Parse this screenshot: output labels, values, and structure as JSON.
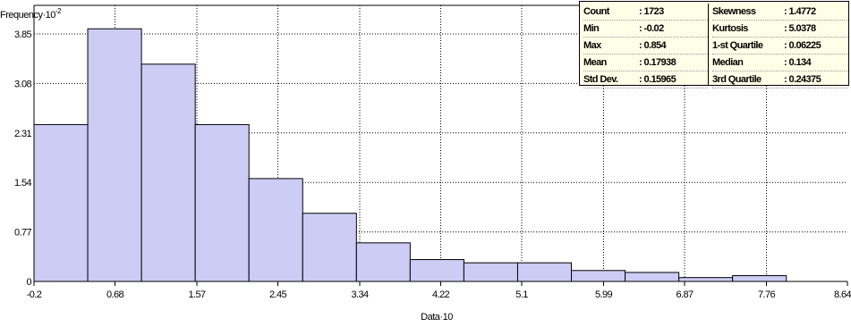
{
  "chart_data": {
    "type": "bar",
    "ylabel": "Frequency·10",
    "ylabel_exponent": "-2",
    "xlabel": "Data·10",
    "x_ticks": [
      "-0.2",
      "0.68",
      "1.57",
      "2.45",
      "3.34",
      "4.22",
      "5.1",
      "5.99",
      "6.87",
      "7.76",
      "8.64"
    ],
    "y_ticks": [
      "0",
      "0.77",
      "1.54",
      "2.31",
      "3.08",
      "3.85"
    ],
    "xlim": [
      -0.2,
      8.64
    ],
    "ylim": [
      0,
      3.85
    ],
    "bins": [
      {
        "start": -0.2,
        "end": 0.384,
        "value": 2.44
      },
      {
        "start": 0.384,
        "end": 0.968,
        "value": 3.93
      },
      {
        "start": 0.968,
        "end": 1.552,
        "value": 3.38
      },
      {
        "start": 1.552,
        "end": 2.136,
        "value": 2.44
      },
      {
        "start": 2.136,
        "end": 2.72,
        "value": 1.6
      },
      {
        "start": 2.72,
        "end": 3.304,
        "value": 1.06
      },
      {
        "start": 3.304,
        "end": 3.888,
        "value": 0.6
      },
      {
        "start": 3.888,
        "end": 4.472,
        "value": 0.34
      },
      {
        "start": 4.472,
        "end": 5.056,
        "value": 0.29
      },
      {
        "start": 5.056,
        "end": 5.64,
        "value": 0.29
      },
      {
        "start": 5.64,
        "end": 6.224,
        "value": 0.17
      },
      {
        "start": 6.224,
        "end": 6.808,
        "value": 0.14
      },
      {
        "start": 6.808,
        "end": 7.392,
        "value": 0.06
      },
      {
        "start": 7.392,
        "end": 7.976,
        "value": 0.09
      }
    ],
    "bar_color": "#ccccf5",
    "grid": true
  },
  "stats": {
    "left": [
      {
        "name": "Count",
        "value": ": 1723"
      },
      {
        "name": "Min",
        "value": ": -0.02"
      },
      {
        "name": "Max",
        "value": ": 0.854"
      },
      {
        "name": "Mean",
        "value": ": 0.17938"
      },
      {
        "name": "Std Dev.",
        "value": ": 0.15965"
      }
    ],
    "right": [
      {
        "name": "Skewness",
        "value": ": 1.4772"
      },
      {
        "name": "Kurtosis",
        "value": ": 5.0378"
      },
      {
        "name": "1-st Quartile",
        "value": ": 0.06225"
      },
      {
        "name": "Median",
        "value": ": 0.134"
      },
      {
        "name": "3rd Quartile",
        "value": ": 0.24375"
      }
    ]
  }
}
